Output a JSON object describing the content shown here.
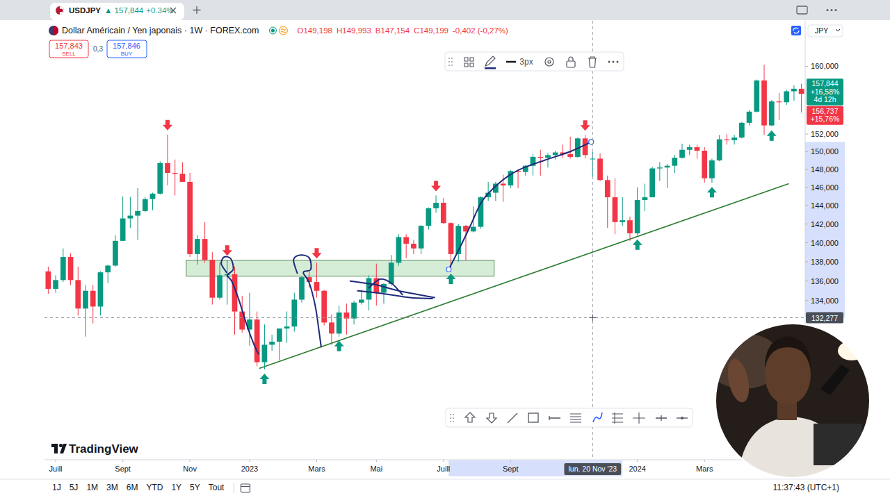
{
  "browser_tab": {
    "symbol": "USDJPY",
    "price": "▲ 157,844",
    "change": "+0.34%"
  },
  "header": {
    "title": "Dollar Américain / Yen japonais · 1W · FOREX.com",
    "ohlc": [
      "O149,198",
      "H149,993",
      "B147,154",
      "C149,199",
      "-0,402 (-0,27%)"
    ],
    "sell_price": "157,843",
    "sell_label": "SELL",
    "spread": "0,3",
    "buy_price": "157,846",
    "buy_label": "BUY",
    "currency": "JPY"
  },
  "toolbar": {
    "line_width": "3px"
  },
  "logo": "TradingView",
  "bottom_bar": {
    "ranges": [
      "1J",
      "5J",
      "1M",
      "3M",
      "6M",
      "YTD",
      "1Y",
      "5Y",
      "Tout"
    ],
    "clock": "11:37:43 (UTC+1)"
  },
  "chart_data": {
    "type": "candlestick",
    "categories": [
      null,
      "Juill",
      null,
      null,
      null,
      null,
      null,
      null,
      null,
      null,
      "Sept",
      null,
      null,
      null,
      null,
      null,
      null,
      null,
      null,
      "Nov",
      null,
      null,
      null,
      null,
      null,
      null,
      null,
      "2023",
      null,
      null,
      null,
      null,
      null,
      null,
      null,
      null,
      "Mars",
      null,
      null,
      null,
      null,
      null,
      null,
      null,
      "Mai",
      null,
      null,
      null,
      null,
      null,
      null,
      null,
      null,
      "Juill",
      null,
      null,
      null,
      null,
      null,
      null,
      null,
      null,
      "Sept",
      null,
      null,
      null,
      null,
      null,
      null,
      null,
      null,
      null,
      null,
      null,
      null,
      null,
      null,
      null,
      null,
      "2024",
      null,
      null,
      null,
      null,
      null,
      null,
      null,
      null,
      "Mars",
      null,
      null,
      null,
      null,
      null,
      null,
      null,
      null,
      null,
      null,
      null,
      null,
      null
    ],
    "open": [
      137.0,
      135.2,
      136.1,
      138.5,
      136.1,
      133.2,
      135.0,
      133.4,
      136.9,
      137.6,
      140.2,
      142.6,
      142.9,
      143.4,
      144.7,
      145.3,
      148.7,
      147.6,
      147.5,
      146.6,
      138.8,
      140.4,
      138.2,
      134.3,
      136.6,
      136.7,
      132.9,
      131.1,
      132.1,
      127.9,
      129.6,
      129.9,
      131.2,
      131.4,
      134.1,
      136.4,
      135.9,
      135.0,
      131.8,
      130.7,
      132.8,
      132.2,
      133.8,
      134.1,
      136.3,
      134.8,
      135.7,
      137.9,
      140.6,
      139.9,
      139.4,
      141.8,
      143.7,
      144.3,
      142.1,
      138.8,
      141.8,
      141.2,
      141.7,
      144.9,
      145.4,
      146.4,
      146.2,
      147.8,
      147.7,
      148.4,
      149.4,
      149.3,
      149.6,
      149.9,
      149.7,
      149.4,
      151.5,
      149.198,
      149.199,
      146.8,
      144.9,
      142.2,
      142.4,
      141.0,
      144.6,
      144.9,
      148.1,
      148.2,
      148.4,
      149.3,
      150.2,
      150.5,
      150.1,
      147.0,
      149.0,
      151.4,
      151.3,
      151.6,
      153.3,
      154.6,
      158.3,
      153.0,
      155.8,
      155.7,
      157.0,
      157.3
    ],
    "high": [
      137.5,
      136.6,
      139.4,
      138.9,
      137.5,
      135.6,
      135.6,
      137.0,
      137.7,
      140.8,
      144.99,
      144.95,
      145.9,
      144.9,
      145.4,
      148.9,
      151.95,
      149.1,
      148.8,
      147.6,
      140.8,
      142.2,
      139.0,
      137.9,
      138.2,
      137.5,
      134.5,
      134.8,
      132.9,
      131.6,
      130.6,
      131.2,
      132.9,
      134.8,
      136.5,
      137.1,
      137.9,
      135.1,
      132.6,
      133.5,
      133.7,
      134.0,
      135.1,
      136.6,
      137.8,
      135.8,
      138.7,
      140.9,
      140.9,
      140.3,
      141.9,
      143.8,
      145.1,
      144.8,
      142.2,
      142.0,
      141.9,
      143.9,
      145.0,
      146.6,
      146.6,
      147.4,
      147.9,
      147.9,
      148.5,
      149.7,
      150.2,
      149.8,
      150.1,
      150.8,
      151.7,
      151.6,
      151.9,
      149.993,
      149.8,
      147.3,
      147.0,
      144.9,
      142.8,
      146.0,
      146.4,
      148.3,
      148.8,
      148.6,
      149.6,
      150.9,
      150.8,
      150.8,
      150.5,
      149.2,
      151.9,
      152.0,
      151.9,
      153.4,
      154.8,
      158.4,
      160.2,
      155.95,
      156.8,
      157.2,
      157.7,
      157.9
    ],
    "low": [
      134.7,
      134.8,
      135.9,
      135.6,
      132.5,
      130.4,
      131.7,
      132.5,
      135.8,
      137.5,
      140.2,
      141.6,
      140.3,
      143.3,
      143.5,
      145.2,
      146.2,
      145.1,
      146.6,
      138.5,
      137.7,
      137.9,
      133.6,
      134.1,
      133.6,
      130.6,
      130.8,
      129.5,
      127.5,
      127.2,
      129.0,
      128.1,
      129.8,
      130.9,
      133.8,
      135.3,
      134.3,
      131.5,
      129.6,
      130.4,
      130.6,
      131.6,
      133.6,
      133.0,
      133.5,
      133.7,
      135.5,
      137.6,
      138.4,
      138.8,
      138.8,
      141.4,
      143.2,
      142.0,
      137.2,
      138.0,
      138.1,
      141.1,
      141.5,
      144.5,
      144.5,
      144.4,
      145.9,
      145.9,
      147.3,
      147.3,
      147.3,
      148.2,
      149.1,
      149.3,
      149.2,
      149.3,
      149.2,
      147.154,
      146.7,
      141.6,
      140.9,
      141.8,
      140.2,
      140.8,
      143.4,
      144.9,
      146.7,
      145.9,
      147.6,
      149.2,
      149.6,
      149.2,
      146.5,
      146.5,
      148.9,
      150.8,
      150.8,
      151.5,
      153.0,
      154.5,
      151.9,
      152.9,
      153.6,
      155.4,
      155.9,
      154.5
    ],
    "close": [
      135.2,
      136.1,
      138.5,
      136.1,
      133.2,
      135.0,
      133.4,
      136.9,
      137.6,
      140.2,
      142.6,
      142.9,
      143.4,
      144.7,
      145.3,
      148.7,
      147.6,
      147.5,
      146.6,
      138.8,
      140.4,
      138.2,
      134.3,
      136.6,
      136.7,
      132.9,
      131.1,
      132.1,
      127.9,
      129.6,
      129.9,
      131.2,
      131.4,
      134.1,
      136.4,
      135.9,
      135.0,
      131.8,
      130.7,
      132.8,
      132.2,
      133.8,
      134.1,
      136.3,
      134.8,
      135.7,
      137.9,
      140.6,
      139.9,
      139.4,
      141.8,
      143.7,
      144.3,
      142.1,
      138.8,
      141.8,
      141.2,
      141.7,
      144.9,
      145.4,
      146.4,
      146.2,
      147.8,
      147.7,
      148.4,
      149.4,
      149.3,
      149.6,
      149.9,
      149.7,
      149.4,
      151.5,
      149.601,
      149.199,
      146.8,
      144.9,
      142.2,
      142.4,
      141.0,
      144.6,
      144.9,
      148.1,
      148.2,
      148.4,
      149.3,
      150.2,
      150.5,
      150.1,
      147.0,
      149.0,
      151.4,
      151.3,
      151.6,
      153.3,
      154.6,
      158.3,
      153.0,
      155.8,
      155.7,
      157.0,
      157.3,
      156.7
    ],
    "ylim": [
      118.8,
      165.6
    ],
    "yticks": [
      {
        "value": 134,
        "label": "134,000"
      },
      {
        "value": 136,
        "label": "136,000"
      },
      {
        "value": 138,
        "label": "138,000"
      },
      {
        "value": 140,
        "label": "140,000"
      },
      {
        "value": 142,
        "label": "142,000"
      },
      {
        "value": 144,
        "label": "144,000"
      },
      {
        "value": 146,
        "label": "146,000"
      },
      {
        "value": 148,
        "label": "148,000"
      },
      {
        "value": 150,
        "label": "150,000"
      },
      {
        "value": 152,
        "label": "152,000"
      },
      {
        "value": 160,
        "label": "160,000"
      }
    ],
    "log": "y",
    "grid": false,
    "price_labels": [
      {
        "value": 157.844,
        "label": "157,844",
        "change": "+16,58%",
        "countdown": "4d 12h",
        "color": "#089981"
      },
      {
        "value": 156.737,
        "label": "156,737",
        "change": "+15,76%",
        "color": "#f23645"
      }
    ],
    "crosshair": {
      "index": 73,
      "x_label": "lun. 20 Nov '23",
      "y": 132.277,
      "y_label": "132,277"
    }
  }
}
